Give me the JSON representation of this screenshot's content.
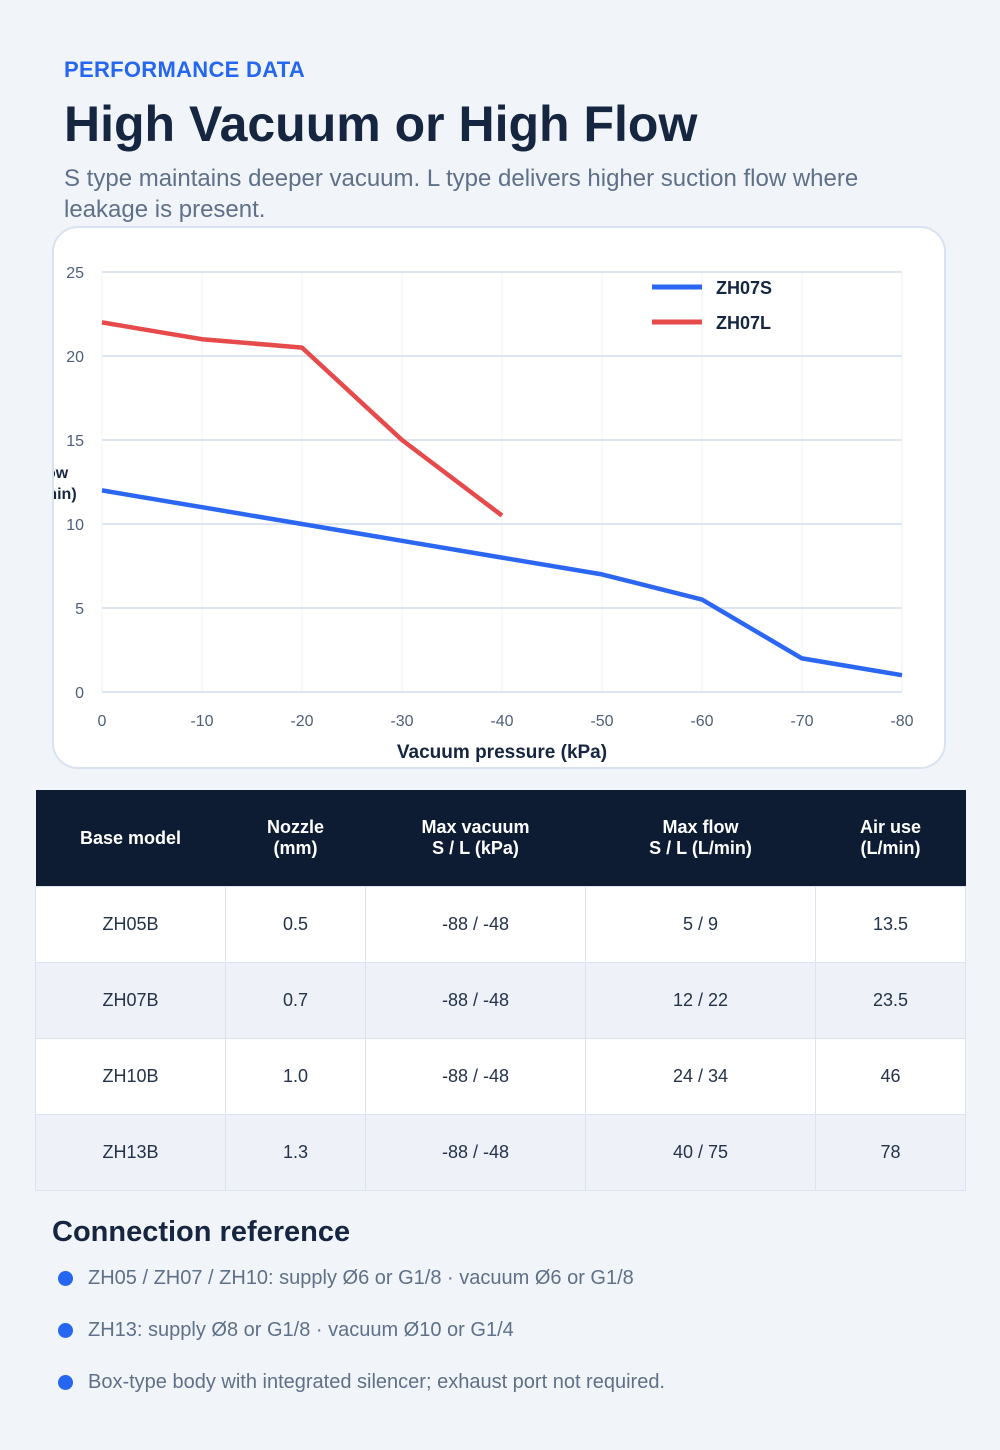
{
  "header": {
    "eyebrow": "PERFORMANCE DATA",
    "title": "High Vacuum or High Flow",
    "subtitle": "S type maintains deeper vacuum. L type delivers higher suction flow where leakage is present."
  },
  "colors": {
    "accent": "#2567f0",
    "zh07s_line": "#2b67f2",
    "zh07l_line": "#e64a4a",
    "table_header_bg": "#0d1b33"
  },
  "chart_data": {
    "type": "line",
    "xlabel": "Vacuum pressure (kPa)",
    "ylabel": [
      "Flow",
      "(L/min)"
    ],
    "xlim": [
      0,
      -80
    ],
    "ylim": [
      0,
      25
    ],
    "x_ticks": [
      0,
      -10,
      -20,
      -30,
      -40,
      -50,
      -60,
      -70,
      -80
    ],
    "y_ticks": [
      0,
      5,
      10,
      15,
      20,
      25
    ],
    "grid": true,
    "legend_position": "top-right",
    "series": [
      {
        "name": "ZH07S",
        "color": "#2b67f2",
        "x": [
          0,
          -10,
          -20,
          -30,
          -40,
          -50,
          -60,
          -70,
          -80
        ],
        "y": [
          12,
          11,
          10,
          9,
          8,
          7,
          5.5,
          2,
          1
        ]
      },
      {
        "name": "ZH07L",
        "color": "#e64a4a",
        "x": [
          0,
          -10,
          -20,
          -30,
          -40
        ],
        "y": [
          22,
          21,
          20.5,
          15,
          10.5
        ]
      }
    ]
  },
  "table": {
    "headers": [
      [
        "Base model"
      ],
      [
        "Nozzle",
        "(mm)"
      ],
      [
        "Max vacuum",
        "S / L (kPa)"
      ],
      [
        "Max flow",
        "S / L (L/min)"
      ],
      [
        "Air use",
        "(L/min)"
      ]
    ],
    "rows": [
      [
        "ZH05B",
        "0.5",
        "-88 / -48",
        "5 / 9",
        "13.5"
      ],
      [
        "ZH07B",
        "0.7",
        "-88 / -48",
        "12 / 22",
        "23.5"
      ],
      [
        "ZH10B",
        "1.0",
        "-88 / -48",
        "24 / 34",
        "46"
      ],
      [
        "ZH13B",
        "1.3",
        "-88 / -48",
        "40 / 75",
        "78"
      ]
    ]
  },
  "connection": {
    "heading": "Connection reference",
    "items": [
      "ZH05 / ZH07 / ZH10: supply Ø6 or G1/8 · vacuum Ø6 or G1/8",
      "ZH13: supply Ø8 or G1/8 · vacuum Ø10 or G1/4",
      "Box-type body with integrated silencer; exhaust port not required."
    ]
  }
}
